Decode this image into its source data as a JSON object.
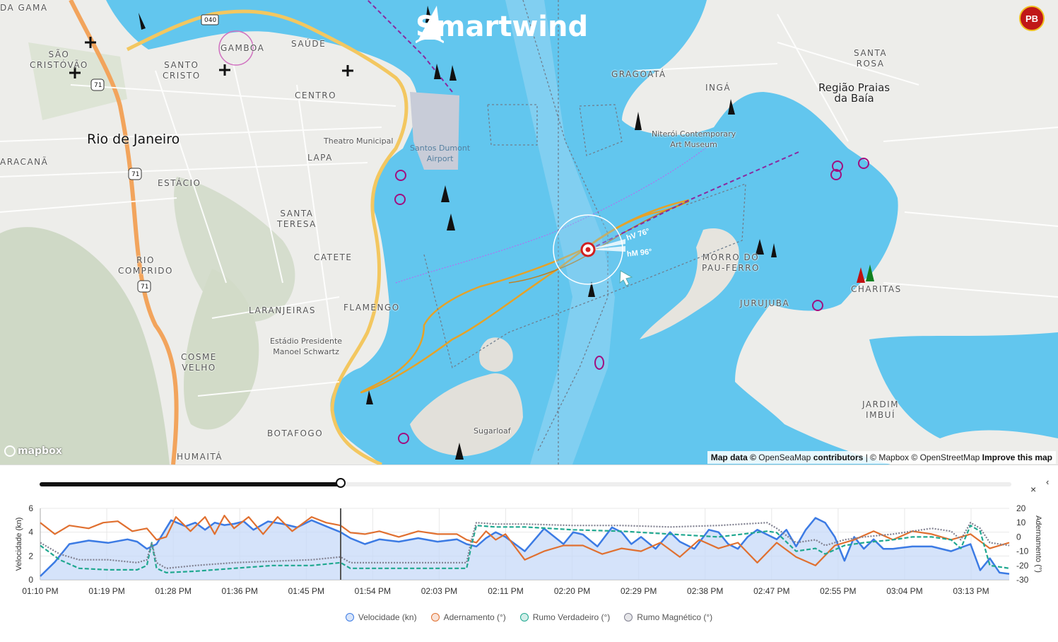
{
  "app": {
    "brand": "Smartwind"
  },
  "map": {
    "labels": {
      "vasco_da_gama": "DA GAMA",
      "sao_cristovao": "SÃO\nCRISTÓVÃO",
      "santo_cristo": "SANTO\nCRISTO",
      "gamboa": "GAMBOA",
      "saude": "SAÚDE",
      "centro": "CENTRO",
      "rio": "Rio de Janeiro",
      "maracana": "ARACANÃ",
      "estacio": "ESTÁCIO",
      "lapa": "LAPA",
      "santa_teresa": "SANTA\nTERESA",
      "rio_comprido": "RIO\nCOMPRIDO",
      "catete": "CATETE",
      "flamengo": "FLAMENGO",
      "laranjeiras": "LARANJEIRAS",
      "cosme_velho": "COSME\nVELHO",
      "botafogo": "BOTAFOGO",
      "humaita": "HUMAITÁ",
      "theatro": "Theatro Municipal",
      "santos_dumont": "Santos Dumont\nAirport",
      "estadio": "Estádio Presidente\nManoel Schwartz",
      "sugarloaf": "Sugarloaf",
      "gragoata": "GRAGOATÁ",
      "inga": "INGÁ",
      "niteroi_museum": "Niterói Contemporary\nArt Museum",
      "santa_rosa": "SANTA\nROSA",
      "regiao": "Região Praias\nda Baía",
      "morro": "MORRO DO\nPAU-FERRO",
      "jurujuba": "JURUJUBA",
      "charitas": "CHARITAS",
      "jardim": "JARDIM\nIMBUÍ",
      "road_040": "040",
      "road_71a": "71",
      "road_71b": "71",
      "road_71c": "71"
    },
    "heading_true": "hV  76°",
    "heading_magnetic": "hM  96°",
    "mapbox_logo": "mapbox",
    "attribution": {
      "prefix": "Map data ©",
      "osm_sea": "OpenSeaMap",
      "contrib": "contributors",
      "sep": "| ©",
      "mapbox": "Mapbox",
      "copy2": "©",
      "osm": "OpenStreetMap",
      "improve": "Improve this map"
    },
    "badge": "PB"
  },
  "timeline": {
    "position": 0.31,
    "close_label": "×",
    "collapse_label": "‹"
  },
  "chart_data": {
    "type": "line",
    "x_ticks": [
      "01:10 PM",
      "01:19 PM",
      "01:28 PM",
      "01:36 PM",
      "01:45 PM",
      "01:54 PM",
      "02:03 PM",
      "02:11 PM",
      "02:20 PM",
      "02:29 PM",
      "02:38 PM",
      "02:47 PM",
      "02:55 PM",
      "03:04 PM",
      "03:13 PM"
    ],
    "ylabel_left": "Velocidade (kn)",
    "ylabel_right": "Adernamento (°)",
    "ylim_left": [
      0,
      6
    ],
    "ylim_right": [
      -30,
      20
    ],
    "yticks_left": [
      0,
      2,
      4,
      6
    ],
    "yticks_right": [
      20,
      10,
      0,
      -10,
      -20,
      -30
    ],
    "cursor_x": 0.31,
    "x_domain": [
      0,
      1
    ],
    "series": [
      {
        "name": "Velocidade (kn)",
        "color": "#3c7be4",
        "axis": "left",
        "area": true,
        "x": [
          0,
          0.015,
          0.03,
          0.05,
          0.07,
          0.09,
          0.1,
          0.11,
          0.12,
          0.135,
          0.15,
          0.16,
          0.17,
          0.18,
          0.19,
          0.2,
          0.21,
          0.22,
          0.235,
          0.25,
          0.265,
          0.28,
          0.295,
          0.31,
          0.32,
          0.335,
          0.35,
          0.37,
          0.39,
          0.41,
          0.43,
          0.44,
          0.45,
          0.46,
          0.47,
          0.48,
          0.5,
          0.52,
          0.54,
          0.55,
          0.56,
          0.575,
          0.59,
          0.6,
          0.61,
          0.62,
          0.635,
          0.65,
          0.66,
          0.675,
          0.69,
          0.7,
          0.71,
          0.72,
          0.73,
          0.74,
          0.75,
          0.76,
          0.77,
          0.78,
          0.79,
          0.8,
          0.81,
          0.82,
          0.83,
          0.84,
          0.85,
          0.86,
          0.87,
          0.88,
          0.9,
          0.92,
          0.94,
          0.96,
          0.97,
          0.98,
          0.99,
          1
        ],
        "y": [
          0.3,
          1.5,
          3.0,
          3.3,
          3.1,
          3.4,
          3.2,
          2.6,
          3.0,
          5.0,
          4.5,
          4.8,
          4.2,
          4.8,
          4.6,
          4.7,
          4.9,
          4.2,
          4.9,
          4.7,
          4.4,
          5.0,
          4.5,
          4.0,
          3.5,
          3.0,
          3.4,
          3.2,
          3.5,
          3.2,
          3.4,
          3.0,
          2.8,
          3.5,
          4.0,
          3.6,
          2.4,
          4.3,
          3.0,
          4.0,
          3.8,
          2.8,
          4.4,
          4.0,
          3.0,
          3.6,
          2.6,
          4.0,
          3.2,
          2.6,
          4.2,
          4.0,
          3.0,
          2.6,
          3.6,
          4.2,
          3.8,
          3.4,
          4.2,
          2.8,
          4.2,
          5.2,
          4.8,
          3.6,
          1.6,
          3.6,
          2.6,
          3.4,
          2.6,
          2.6,
          2.8,
          2.8,
          2.4,
          3.0,
          0.8,
          1.8,
          0.6,
          0.5
        ]
      },
      {
        "name": "Adernamento (°)",
        "color": "#e07030",
        "axis": "right",
        "x": [
          0,
          0.015,
          0.03,
          0.05,
          0.065,
          0.08,
          0.095,
          0.11,
          0.12,
          0.13,
          0.14,
          0.155,
          0.17,
          0.18,
          0.19,
          0.2,
          0.215,
          0.23,
          0.245,
          0.26,
          0.28,
          0.295,
          0.31,
          0.32,
          0.335,
          0.35,
          0.37,
          0.39,
          0.41,
          0.43,
          0.44,
          0.45,
          0.46,
          0.47,
          0.48,
          0.5,
          0.52,
          0.54,
          0.56,
          0.58,
          0.6,
          0.62,
          0.64,
          0.66,
          0.68,
          0.7,
          0.72,
          0.74,
          0.76,
          0.78,
          0.8,
          0.82,
          0.84,
          0.86,
          0.88,
          0.9,
          0.92,
          0.94,
          0.96,
          0.98,
          1
        ],
        "y": [
          10,
          2,
          8,
          6,
          10,
          11,
          4,
          6,
          -2,
          0,
          14,
          4,
          14,
          2,
          15,
          6,
          14,
          2,
          14,
          4,
          14,
          10,
          8,
          3,
          2,
          4,
          0,
          4,
          2,
          2,
          -2,
          -4,
          4,
          -2,
          2,
          -16,
          -10,
          -6,
          -6,
          -12,
          -8,
          -10,
          -4,
          -14,
          -2,
          -8,
          -4,
          -18,
          -4,
          -14,
          -20,
          -6,
          -2,
          4,
          -2,
          4,
          2,
          -2,
          2,
          -8,
          -4
        ]
      },
      {
        "name": "Rumo Verdadeiro (°)",
        "color": "#20a890",
        "axis": "right",
        "dashed": true,
        "x": [
          0,
          0.02,
          0.04,
          0.07,
          0.1,
          0.11,
          0.115,
          0.12,
          0.13,
          0.16,
          0.2,
          0.24,
          0.28,
          0.31,
          0.32,
          0.36,
          0.4,
          0.44,
          0.445,
          0.45,
          0.47,
          0.5,
          0.55,
          0.6,
          0.65,
          0.7,
          0.75,
          0.76,
          0.78,
          0.8,
          0.81,
          0.83,
          0.85,
          0.88,
          0.9,
          0.92,
          0.94,
          0.95,
          0.96,
          0.97,
          0.98,
          1
        ],
        "y": [
          -6,
          -16,
          -22,
          -23,
          -23,
          -20,
          -4,
          -22,
          -25,
          -24,
          -22,
          -20,
          -20,
          -18,
          -22,
          -22,
          -22,
          -22,
          -6,
          8,
          7,
          7,
          5,
          4,
          2,
          0,
          4,
          3,
          -10,
          -8,
          -12,
          -6,
          -4,
          -2,
          0,
          0,
          -2,
          -8,
          8,
          4,
          -20,
          -22
        ]
      },
      {
        "name": "Rumo Magnético (°)",
        "color": "#808090",
        "axis": "right",
        "dotted": true,
        "x": [
          0,
          0.02,
          0.04,
          0.07,
          0.1,
          0.11,
          0.115,
          0.12,
          0.13,
          0.16,
          0.2,
          0.24,
          0.28,
          0.31,
          0.32,
          0.36,
          0.4,
          0.44,
          0.445,
          0.45,
          0.47,
          0.5,
          0.55,
          0.6,
          0.65,
          0.7,
          0.75,
          0.76,
          0.78,
          0.8,
          0.81,
          0.83,
          0.85,
          0.88,
          0.9,
          0.92,
          0.94,
          0.95,
          0.96,
          0.97,
          0.98,
          1
        ],
        "y": [
          -4,
          -12,
          -16,
          -16,
          -18,
          -16,
          -4,
          -18,
          -22,
          -20,
          -18,
          -17,
          -16,
          -14,
          -18,
          -18,
          -18,
          -18,
          -2,
          10,
          9,
          9,
          8,
          8,
          7,
          8,
          10,
          6,
          -4,
          -2,
          -6,
          -2,
          0,
          2,
          4,
          6,
          4,
          -2,
          10,
          6,
          -4,
          -6
        ]
      }
    ]
  }
}
